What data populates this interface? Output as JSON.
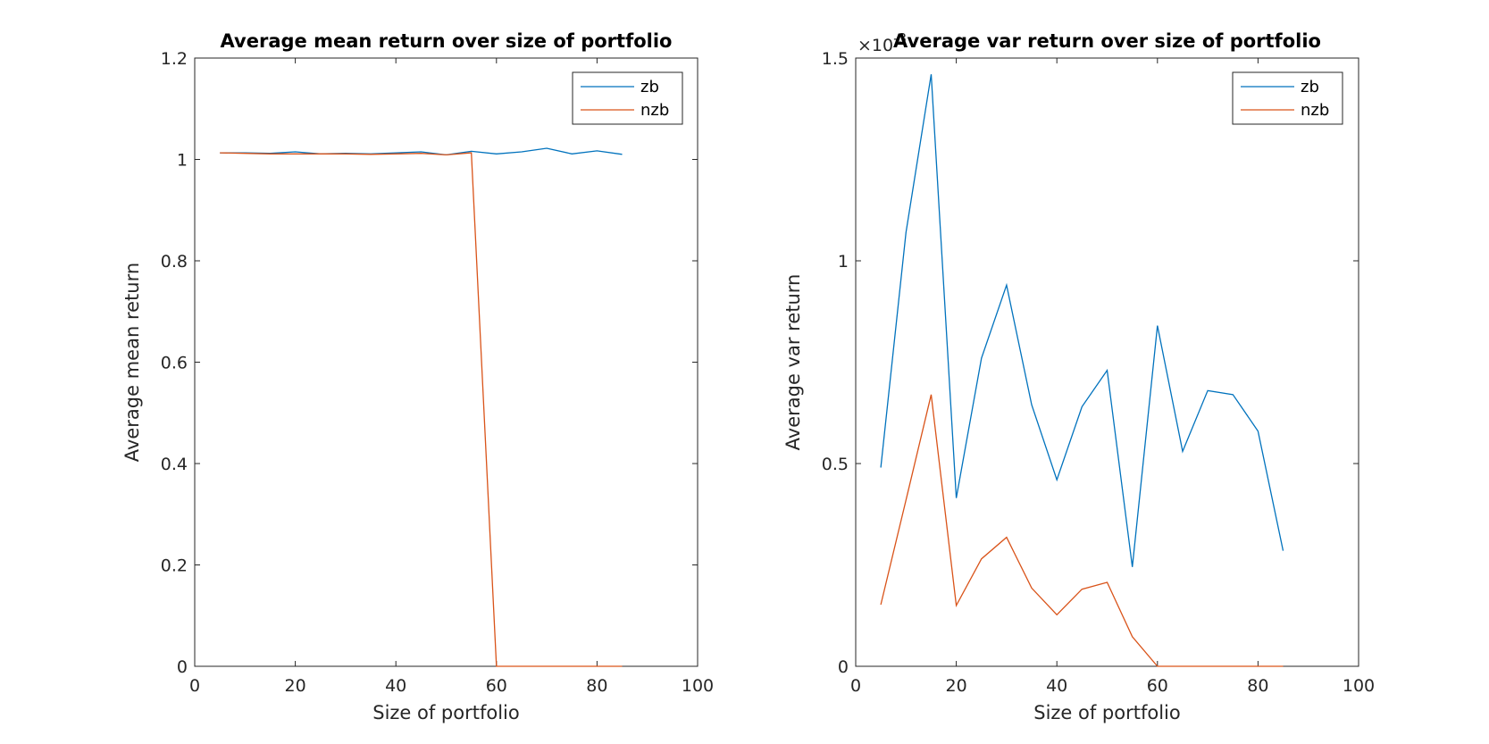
{
  "chart_data": [
    {
      "type": "line",
      "title": "Average mean return over size of portfolio",
      "xlabel": "Size of portfolio",
      "ylabel": "Average mean return",
      "xlim": [
        0,
        100
      ],
      "ylim": [
        0,
        1.2
      ],
      "xticks": [
        0,
        20,
        40,
        60,
        80,
        100
      ],
      "yticks": [
        0,
        0.2,
        0.4,
        0.6,
        0.8,
        1,
        1.2
      ],
      "xtick_labels": [
        "0",
        "20",
        "40",
        "60",
        "80",
        "100"
      ],
      "ytick_labels": [
        "0",
        "0.2",
        "0.4",
        "0.6",
        "0.8",
        "1",
        "1.2"
      ],
      "legend_position": "top-right",
      "x": [
        5,
        10,
        15,
        20,
        25,
        30,
        35,
        40,
        45,
        50,
        55,
        60,
        65,
        70,
        75,
        80,
        85
      ],
      "series": [
        {
          "name": "zb",
          "color": "#0072BD",
          "values": [
            1.013,
            1.013,
            1.012,
            1.015,
            1.011,
            1.012,
            1.011,
            1.013,
            1.015,
            1.009,
            1.016,
            1.011,
            1.015,
            1.022,
            1.011,
            1.017,
            1.01
          ]
        },
        {
          "name": "nzb",
          "color": "#D95319",
          "values": [
            1.013,
            1.012,
            1.011,
            1.011,
            1.011,
            1.011,
            1.01,
            1.011,
            1.012,
            1.009,
            1.013,
            0,
            0,
            0,
            0,
            0,
            0
          ]
        }
      ]
    },
    {
      "type": "line",
      "title": "Average var return over size of portfolio",
      "xlabel": "Size of portfolio",
      "ylabel": "Average var return",
      "xlim": [
        0,
        100
      ],
      "ylim": [
        0,
        0.0015
      ],
      "y_exponent_label": "×10",
      "y_exponent": "-3",
      "xticks": [
        0,
        20,
        40,
        60,
        80,
        100
      ],
      "yticks": [
        0,
        0.0005,
        0.001,
        0.0015
      ],
      "xtick_labels": [
        "0",
        "20",
        "40",
        "60",
        "80",
        "100"
      ],
      "ytick_labels": [
        "0",
        "0.5",
        "1",
        "1.5"
      ],
      "legend_position": "top-right",
      "x": [
        5,
        10,
        15,
        20,
        25,
        30,
        35,
        40,
        45,
        50,
        55,
        60,
        65,
        70,
        75,
        80,
        85
      ],
      "series": [
        {
          "name": "zb",
          "color": "#0072BD",
          "values": [
            0.00049,
            0.00107,
            0.00146,
            0.000415,
            0.00076,
            0.00094,
            0.000645,
            0.00046,
            0.00064,
            0.00073,
            0.000245,
            0.00084,
            0.00053,
            0.00068,
            0.00067,
            0.00058,
            0.000285
          ]
        },
        {
          "name": "nzb",
          "color": "#D95319",
          "values": [
            0.000152,
            0.00041,
            0.00067,
            0.00015,
            0.000265,
            0.000318,
            0.000193,
            0.000127,
            0.00019,
            0.000207,
            7.3e-05,
            0,
            0,
            0,
            0,
            0,
            0
          ]
        }
      ]
    }
  ]
}
